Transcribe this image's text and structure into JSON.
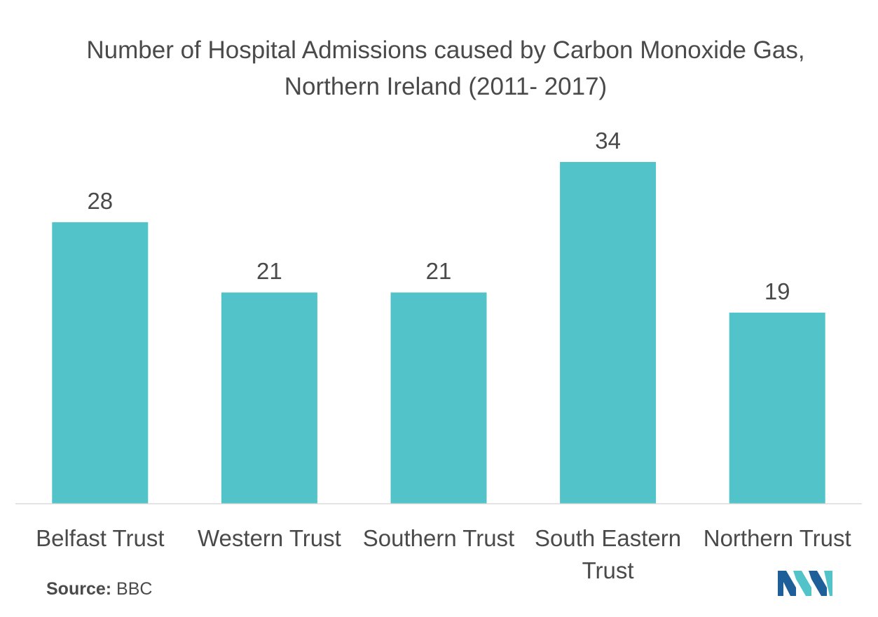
{
  "chart_data": {
    "type": "bar",
    "title": "Number of Hospital Admissions caused by Carbon Monoxide Gas, Northern Ireland (2011- 2017)",
    "categories": [
      [
        "Belfast Trust"
      ],
      [
        "Western Trust"
      ],
      [
        "Southern Trust"
      ],
      [
        "South Eastern",
        "Trust"
      ],
      [
        "Northern Trust"
      ]
    ],
    "values": [
      28,
      21,
      21,
      34,
      19
    ],
    "ylim": [
      0,
      34
    ],
    "grid": false,
    "legend": "none",
    "bar_color": "#52c4c9",
    "axis_color": "#d9d9d9"
  },
  "source": {
    "label": "Source:",
    "value": "BBC"
  },
  "logo": {
    "icon": "mordor-intelligence-logo-icon",
    "colors": [
      "#1e5f99",
      "#52c4c9"
    ]
  }
}
